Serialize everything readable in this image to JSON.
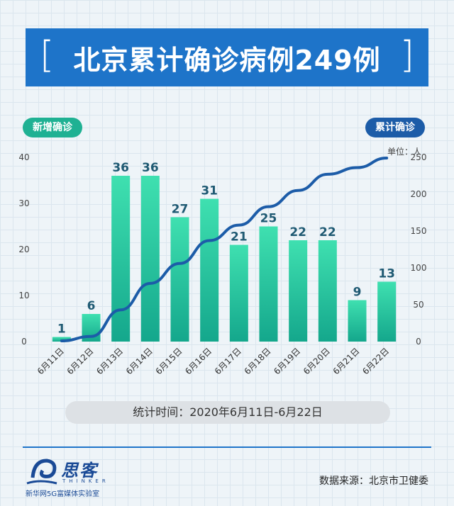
{
  "header": {
    "title": "北京累计确诊病例249例",
    "bracket_left": "[",
    "bracket_right": "]"
  },
  "legend": {
    "left_badge": "新增确诊",
    "right_badge": "累计确诊",
    "unit": "单位：人"
  },
  "footer": {
    "stat_period": "统计时间：2020年6月11日-6月22日",
    "source": "数据来源：北京市卫健委",
    "logo_text": "思客",
    "logo_sub": "THINKER",
    "logo_org": "新华网5G富媒体实验室"
  },
  "colors": {
    "bar_top": "#3fe0b0",
    "bar_bottom": "#14a78c",
    "line": "#1c5ca8",
    "label": "#1f5a73",
    "title_bg": "#1e74c9"
  },
  "chart_data": {
    "type": "bar",
    "categories": [
      "6月11日",
      "6月12日",
      "6月13日",
      "6月14日",
      "6月15日",
      "6月16日",
      "6月17日",
      "6月18日",
      "6月19日",
      "6月20日",
      "6月21日",
      "6月22日"
    ],
    "series": [
      {
        "name": "新增确诊",
        "type": "bar",
        "axis": "left",
        "values": [
          1,
          6,
          36,
          36,
          27,
          31,
          21,
          25,
          22,
          22,
          9,
          13
        ]
      },
      {
        "name": "累计确诊",
        "type": "line",
        "axis": "right",
        "values": [
          1,
          7,
          43,
          79,
          106,
          137,
          158,
          183,
          205,
          227,
          236,
          249
        ]
      }
    ],
    "y_left": {
      "ylim": [
        0,
        40
      ],
      "ticks": [
        0,
        10,
        20,
        30,
        40
      ]
    },
    "y_right": {
      "ylim": [
        0,
        250
      ],
      "ticks": [
        0,
        50,
        100,
        150,
        200,
        250
      ]
    },
    "data_labels": true,
    "grid": false
  }
}
